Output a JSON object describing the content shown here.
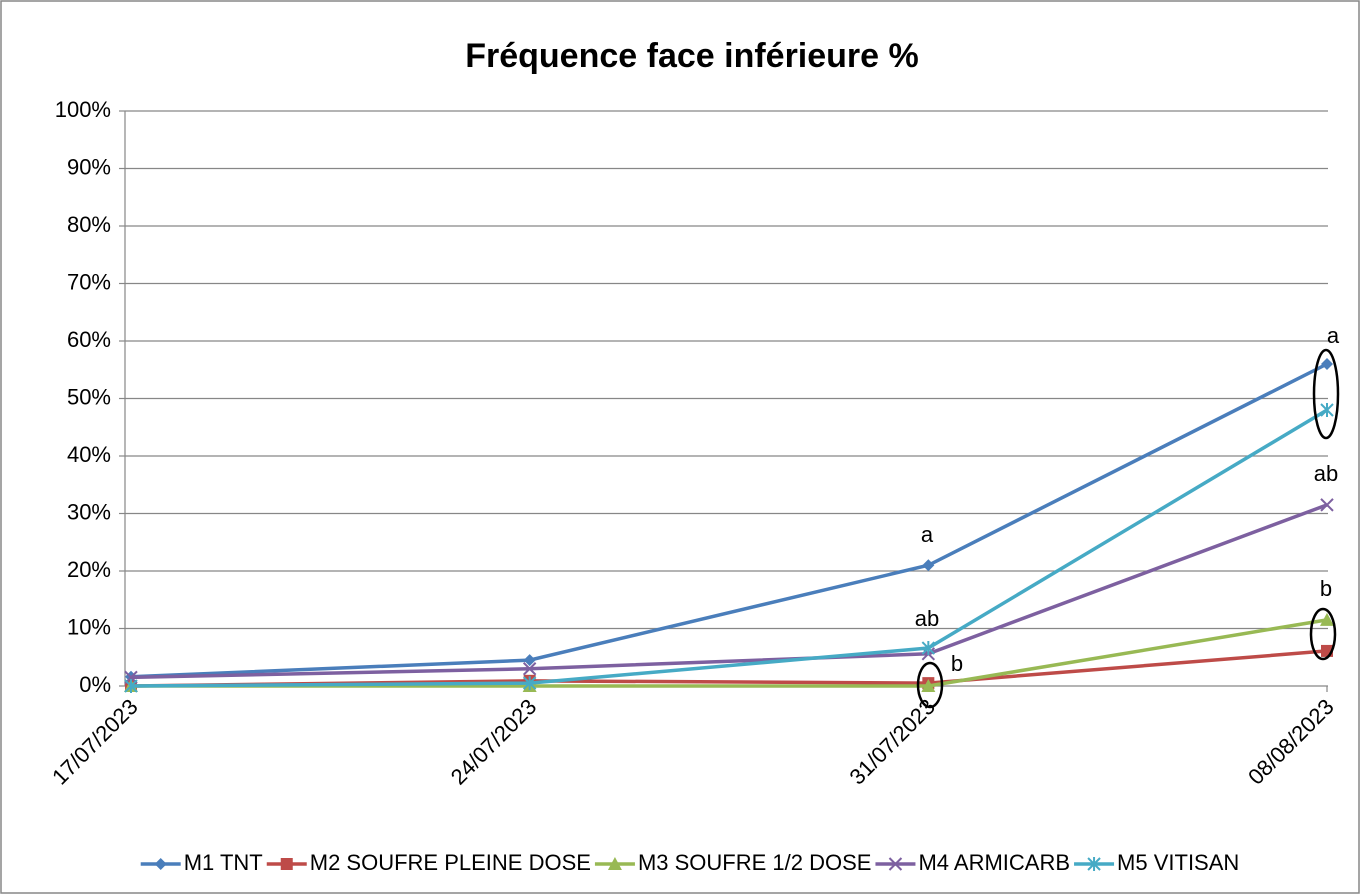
{
  "chart_data": {
    "type": "line",
    "title": "Fréquence face inférieure %",
    "categories": [
      "17/07/2023",
      "24/07/2023",
      "31/07/2023",
      "08/08/2023"
    ],
    "series": [
      {
        "name": "M1 TNT",
        "color": "#4a7ebb",
        "marker": "diamond",
        "values": [
          1.6,
          4.5,
          21,
          56
        ]
      },
      {
        "name": "M2 SOUFRE PLEINE DOSE",
        "color": "#be4b48",
        "marker": "square",
        "values": [
          0,
          0.9,
          0.5,
          6.1
        ]
      },
      {
        "name": "M3 SOUFRE 1/2 DOSE",
        "color": "#98b954",
        "marker": "triangle",
        "values": [
          0,
          0,
          0,
          11.5
        ]
      },
      {
        "name": "M4 ARMICARB",
        "color": "#7d60a0",
        "marker": "x",
        "values": [
          1.5,
          3,
          5.6,
          31.5
        ]
      },
      {
        "name": "M5 VITISAN",
        "color": "#46aac5",
        "marker": "asterisk",
        "values": [
          0,
          0.5,
          6.6,
          48
        ]
      }
    ],
    "ylim": [
      0,
      100
    ],
    "yticks": [
      {
        "value": 0,
        "label": "0%"
      },
      {
        "value": 10,
        "label": "10%"
      },
      {
        "value": 20,
        "label": "20%"
      },
      {
        "value": 30,
        "label": "30%"
      },
      {
        "value": 40,
        "label": "40%"
      },
      {
        "value": 50,
        "label": "50%"
      },
      {
        "value": 60,
        "label": "60%"
      },
      {
        "value": 70,
        "label": "70%"
      },
      {
        "value": 80,
        "label": "80%"
      },
      {
        "value": 90,
        "label": "90%"
      },
      {
        "value": 100,
        "label": "100%"
      }
    ],
    "grid": true,
    "legend": "bottom",
    "annotations": [
      "a",
      "ab",
      "b",
      "a",
      "ab",
      "b"
    ]
  }
}
